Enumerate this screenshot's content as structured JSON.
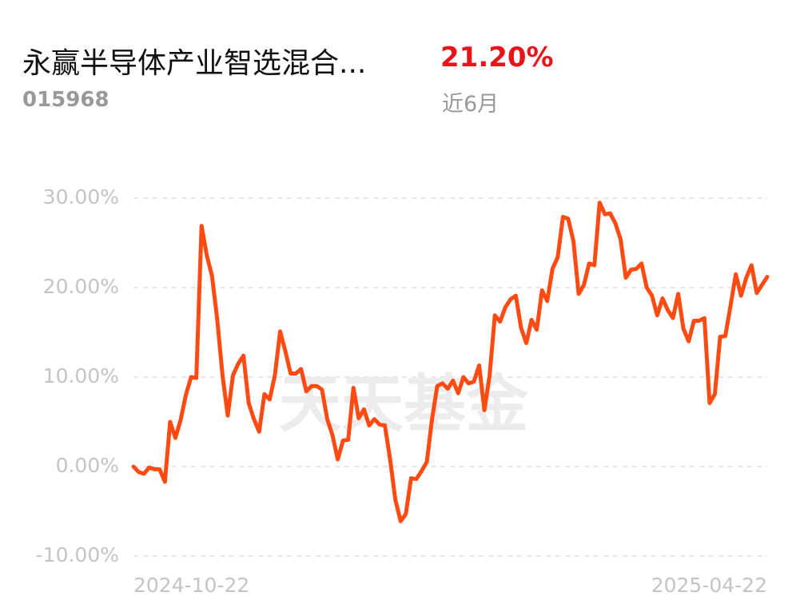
{
  "header": {
    "title": "永赢半导体产业智选混合...",
    "return": "21.20%",
    "code": "015968",
    "period": "近6月"
  },
  "chart_data": {
    "type": "line",
    "watermark": "天天基金",
    "categories": [
      "2024-10-22",
      null,
      null,
      null,
      null,
      null,
      null,
      null,
      null,
      null,
      null,
      null,
      null,
      null,
      null,
      null,
      null,
      null,
      null,
      null,
      null,
      null,
      null,
      null,
      null,
      null,
      null,
      null,
      null,
      null,
      null,
      null,
      null,
      null,
      null,
      null,
      null,
      null,
      null,
      null,
      null,
      null,
      null,
      null,
      null,
      null,
      null,
      null,
      null,
      null,
      null,
      null,
      null,
      null,
      null,
      null,
      null,
      null,
      null,
      null,
      null,
      null,
      null,
      null,
      null,
      null,
      null,
      null,
      null,
      null,
      null,
      null,
      null,
      null,
      null,
      null,
      null,
      null,
      null,
      null,
      null,
      null,
      null,
      null,
      null,
      null,
      null,
      null,
      null,
      null,
      null,
      null,
      null,
      null,
      null,
      null,
      null,
      null,
      null,
      null,
      null,
      null,
      null,
      null,
      null,
      null,
      null,
      null,
      null,
      null,
      null,
      null,
      null,
      null,
      null,
      null,
      null,
      null,
      null,
      null,
      null,
      "2025-04-22"
    ],
    "series": [
      {
        "color": "#ff4a12",
        "values": [
          0,
          -0.6,
          -0.8,
          -0.1,
          -0.3,
          -0.3,
          -1.7,
          5.0,
          3.2,
          5.2,
          8.0,
          10.0,
          9.9,
          26.9,
          23.6,
          21.3,
          16.4,
          10.2,
          5.7,
          10.2,
          11.5,
          12.4,
          7.1,
          5.3,
          3.9,
          8.1,
          7.5,
          10.2,
          15.1,
          12.9,
          10.4,
          10.4,
          10.9,
          8.4,
          9.0,
          9.0,
          8.6,
          5.3,
          3.5,
          0.8,
          2.9,
          3.0,
          8.8,
          5.4,
          6.4,
          4.6,
          5.3,
          4.7,
          4.6,
          0.8,
          -3.7,
          -6.1,
          -5.3,
          -1.3,
          -1.4,
          -0.5,
          0.5,
          5.3,
          9.0,
          9.3,
          8.7,
          9.6,
          8.2,
          10.0,
          9.3,
          9.5,
          11.3,
          6.3,
          10.2,
          16.9,
          16.2,
          17.8,
          18.7,
          19.1,
          15.5,
          13.8,
          16.4,
          15.3,
          19.7,
          18.5,
          22.1,
          23.4,
          27.9,
          27.7,
          25.2,
          19.3,
          20.3,
          22.7,
          22.5,
          29.5,
          28.2,
          28.3,
          27.2,
          25.4,
          21.1,
          22.0,
          22.1,
          22.7,
          20.0,
          19.1,
          16.9,
          18.8,
          17.5,
          16.6,
          19.3,
          15.4,
          14.0,
          16.3,
          16.3,
          16.6,
          7.1,
          8.1,
          14.5,
          14.6,
          18.0,
          21.5,
          19.1,
          21.1,
          22.5,
          19.4,
          20.3,
          21.2
        ]
      }
    ],
    "ylim": [
      -10,
      30
    ],
    "yticks": [
      {
        "value": -10,
        "label": "-10.00%"
      },
      {
        "value": 0,
        "label": "0.00%"
      },
      {
        "value": 10,
        "label": "10.00%"
      },
      {
        "value": 20,
        "label": "20.00%"
      },
      {
        "value": 30,
        "label": "30.00%"
      }
    ],
    "grid": true
  }
}
